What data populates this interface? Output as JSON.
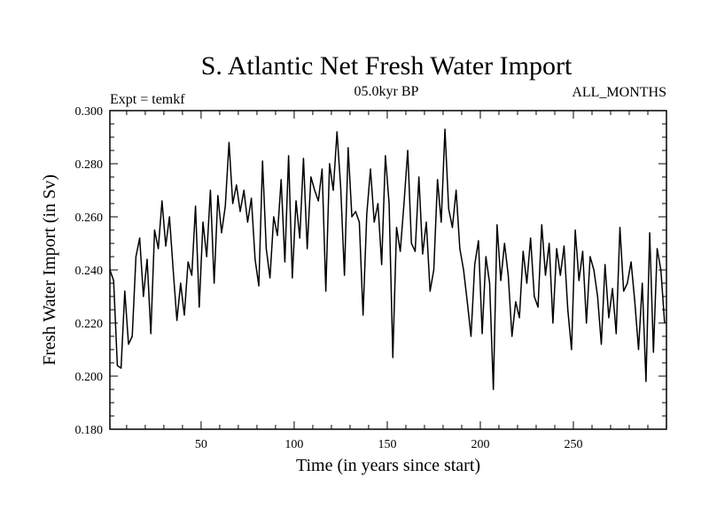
{
  "colors": {
    "line": "#000000",
    "background": "#ffffff"
  },
  "chart_data": {
    "type": "line",
    "title": "S. Atlantic Net Fresh Water Import",
    "subtitle_left": "Expt = temkf",
    "subtitle_center": "05.0kyr BP",
    "subtitle_right": "ALL_MONTHS",
    "xlabel": "Time (in years since start)",
    "ylabel": "Fresh Water Import (in Sv)",
    "xlim": [
      1,
      300
    ],
    "ylim": [
      0.18,
      0.3
    ],
    "xticks": [
      50,
      100,
      150,
      200,
      250
    ],
    "xtick_labels": [
      "50",
      "100",
      "150",
      "200",
      "250"
    ],
    "yticks": [
      0.18,
      0.2,
      0.22,
      0.24,
      0.26,
      0.28,
      0.3
    ],
    "ytick_labels": [
      "0.180",
      "0.200",
      "0.220",
      "0.240",
      "0.260",
      "0.280",
      "0.300"
    ],
    "grid": false,
    "series": [
      {
        "name": "Fresh Water Import",
        "x": [
          1,
          3,
          5,
          7,
          9,
          11,
          13,
          15,
          17,
          19,
          21,
          23,
          25,
          27,
          29,
          31,
          33,
          35,
          37,
          39,
          41,
          43,
          45,
          47,
          49,
          51,
          53,
          55,
          57,
          59,
          61,
          63,
          65,
          67,
          69,
          71,
          73,
          75,
          77,
          79,
          81,
          83,
          85,
          87,
          89,
          91,
          93,
          95,
          97,
          99,
          101,
          103,
          105,
          107,
          109,
          111,
          113,
          115,
          117,
          119,
          121,
          123,
          125,
          127,
          129,
          131,
          133,
          135,
          137,
          139,
          141,
          143,
          145,
          147,
          149,
          151,
          153,
          155,
          157,
          159,
          161,
          163,
          165,
          167,
          169,
          171,
          173,
          175,
          177,
          179,
          181,
          183,
          185,
          187,
          189,
          191,
          193,
          195,
          197,
          199,
          201,
          203,
          205,
          207,
          209,
          211,
          213,
          215,
          217,
          219,
          221,
          223,
          225,
          227,
          229,
          231,
          233,
          235,
          237,
          239,
          241,
          243,
          245,
          247,
          249,
          251,
          253,
          255,
          257,
          259,
          261,
          263,
          265,
          267,
          269,
          271,
          273,
          275,
          277,
          279,
          281,
          283,
          285,
          287,
          289,
          291,
          293,
          295,
          297,
          299
        ],
        "values": [
          0.24,
          0.236,
          0.204,
          0.203,
          0.232,
          0.212,
          0.215,
          0.245,
          0.252,
          0.23,
          0.244,
          0.216,
          0.255,
          0.248,
          0.266,
          0.249,
          0.26,
          0.24,
          0.221,
          0.235,
          0.223,
          0.243,
          0.238,
          0.264,
          0.226,
          0.258,
          0.245,
          0.27,
          0.235,
          0.268,
          0.254,
          0.264,
          0.288,
          0.265,
          0.272,
          0.262,
          0.27,
          0.258,
          0.267,
          0.244,
          0.234,
          0.281,
          0.248,
          0.237,
          0.26,
          0.253,
          0.274,
          0.243,
          0.283,
          0.237,
          0.266,
          0.252,
          0.282,
          0.248,
          0.275,
          0.27,
          0.266,
          0.278,
          0.232,
          0.28,
          0.27,
          0.292,
          0.271,
          0.238,
          0.286,
          0.26,
          0.262,
          0.258,
          0.223,
          0.261,
          0.278,
          0.258,
          0.265,
          0.242,
          0.283,
          0.265,
          0.207,
          0.256,
          0.247,
          0.265,
          0.285,
          0.25,
          0.247,
          0.275,
          0.246,
          0.258,
          0.232,
          0.24,
          0.274,
          0.258,
          0.293,
          0.263,
          0.256,
          0.27,
          0.248,
          0.24,
          0.228,
          0.215,
          0.242,
          0.251,
          0.216,
          0.245,
          0.235,
          0.195,
          0.257,
          0.236,
          0.25,
          0.238,
          0.215,
          0.228,
          0.222,
          0.247,
          0.235,
          0.252,
          0.23,
          0.226,
          0.257,
          0.238,
          0.25,
          0.22,
          0.248,
          0.238,
          0.249,
          0.225,
          0.21,
          0.255,
          0.236,
          0.247,
          0.22,
          0.245,
          0.24,
          0.23,
          0.212,
          0.242,
          0.222,
          0.233,
          0.216,
          0.256,
          0.232,
          0.235,
          0.243,
          0.228,
          0.21,
          0.235,
          0.198,
          0.254,
          0.209,
          0.248,
          0.24,
          0.22
        ]
      }
    ]
  }
}
